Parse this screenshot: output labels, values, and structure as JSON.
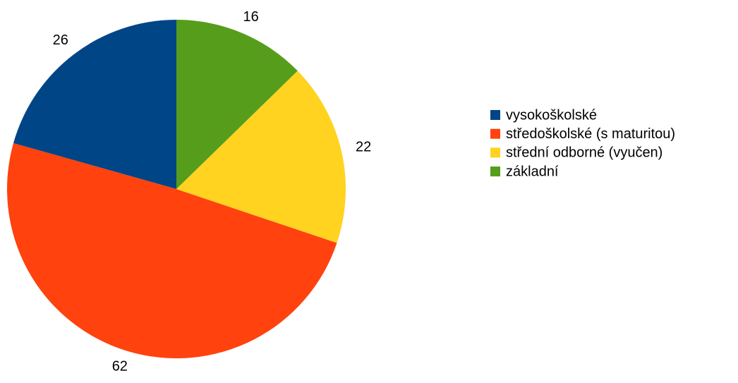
{
  "chart_data": {
    "type": "pie",
    "categories": [
      "vysokoškolské",
      "středoškolské (s maturitou)",
      "střední odborné (vyučen)",
      "základní"
    ],
    "values": [
      26,
      62,
      22,
      16
    ],
    "colors": [
      "#004586",
      "#ff420e",
      "#ffd320",
      "#579d1c"
    ],
    "legend": "right"
  }
}
